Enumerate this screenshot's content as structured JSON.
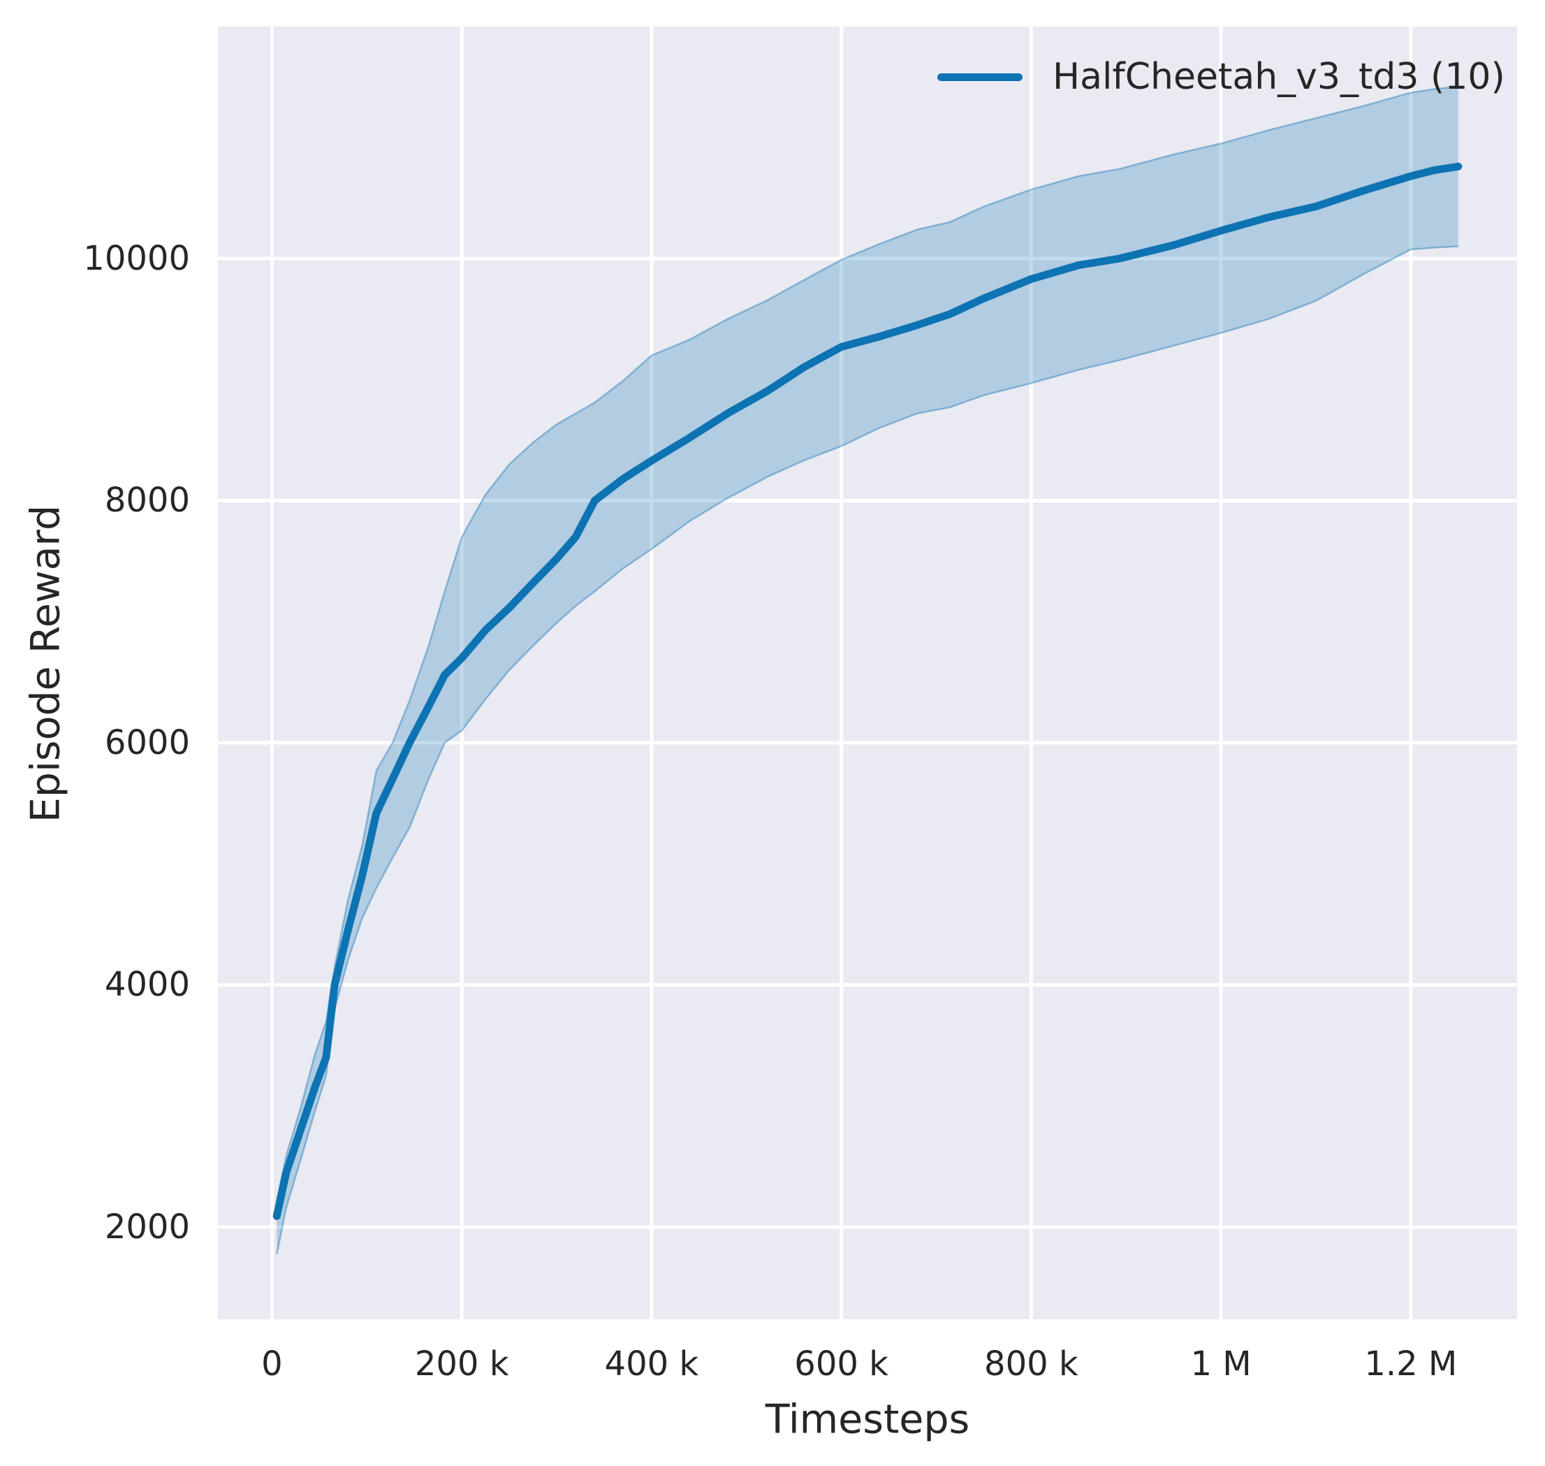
{
  "chart_data": {
    "type": "line",
    "title": "",
    "xlabel": "Timesteps",
    "ylabel": "Episode Reward",
    "xlim": [
      -57000,
      1312000
    ],
    "ylim": [
      1238,
      11916
    ],
    "grid": true,
    "legend_position": "upper right",
    "legend": {
      "entries": [
        {
          "label": "HalfCheetah_v3_td3 (10)",
          "color": "#0d73b2"
        }
      ]
    },
    "xticks": [
      {
        "value": 0,
        "label": "0"
      },
      {
        "value": 200000,
        "label": "200 k"
      },
      {
        "value": 400000,
        "label": "400 k"
      },
      {
        "value": 600000,
        "label": "600 k"
      },
      {
        "value": 800000,
        "label": "800 k"
      },
      {
        "value": 1000000,
        "label": "1 M"
      },
      {
        "value": 1200000,
        "label": "1.2 M"
      }
    ],
    "yticks": [
      {
        "value": 2000,
        "label": "2000"
      },
      {
        "value": 4000,
        "label": "4000"
      },
      {
        "value": 6000,
        "label": "6000"
      },
      {
        "value": 8000,
        "label": "8000"
      },
      {
        "value": 10000,
        "label": "10000"
      }
    ],
    "series": [
      {
        "name": "HalfCheetah_v3_td3 (10)",
        "color": "#0d73b2",
        "band_alpha": 0.25,
        "x": [
          5000,
          15000,
          30000,
          45000,
          57000,
          66000,
          80000,
          95000,
          110000,
          127000,
          145000,
          165000,
          182000,
          200000,
          225000,
          250000,
          275000,
          300000,
          320000,
          340000,
          370000,
          400000,
          440000,
          480000,
          523000,
          560000,
          600000,
          640000,
          680000,
          714000,
          750000,
          800000,
          850000,
          893000,
          950000,
          1000000,
          1050000,
          1100000,
          1150000,
          1200000,
          1225000,
          1250000
        ],
        "mean": [
          2090,
          2450,
          2800,
          3150,
          3400,
          4000,
          4450,
          4900,
          5420,
          5700,
          6000,
          6300,
          6560,
          6700,
          6930,
          7115,
          7320,
          7520,
          7700,
          8000,
          8180,
          8330,
          8520,
          8720,
          8910,
          9100,
          9270,
          9355,
          9450,
          9540,
          9670,
          9830,
          9945,
          10000,
          10110,
          10230,
          10340,
          10430,
          10560,
          10680,
          10730,
          10760
        ],
        "upper": [
          2210,
          2590,
          2980,
          3420,
          3700,
          4150,
          4700,
          5150,
          5770,
          6000,
          6350,
          6800,
          7250,
          7700,
          8050,
          8300,
          8480,
          8630,
          8720,
          8810,
          8990,
          9200,
          9330,
          9500,
          9660,
          9820,
          9990,
          10120,
          10240,
          10300,
          10430,
          10570,
          10680,
          10740,
          10860,
          10950,
          11060,
          11160,
          11260,
          11370,
          11400,
          11420
        ],
        "lower": [
          1775,
          2160,
          2550,
          2950,
          3250,
          3800,
          4200,
          4550,
          4800,
          5050,
          5300,
          5700,
          6000,
          6100,
          6360,
          6600,
          6800,
          6990,
          7130,
          7250,
          7440,
          7600,
          7830,
          8020,
          8200,
          8330,
          8450,
          8600,
          8720,
          8770,
          8870,
          8970,
          9080,
          9160,
          9280,
          9385,
          9500,
          9650,
          9870,
          10075,
          10090,
          10100
        ]
      }
    ]
  },
  "colors": {
    "figure_bg": "#ffffff",
    "axes_bg": "#eaeaf2",
    "grid": "#ffffff",
    "text": "#262626",
    "line": "#0d73b2"
  }
}
